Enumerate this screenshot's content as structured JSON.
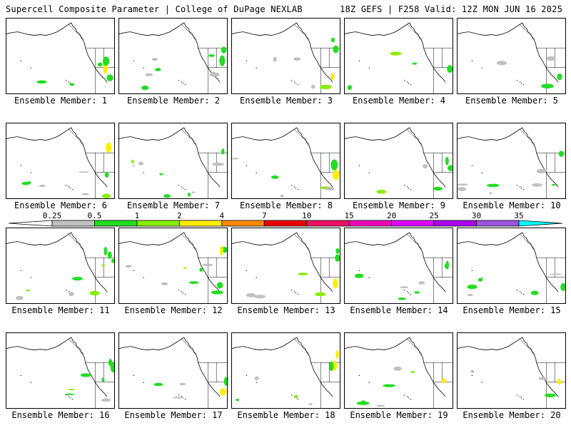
{
  "header": {
    "left": "Supercell Composite Parameter | College of DuPage NEXLAB",
    "right": "18Z GEFS | F258 Valid: 12Z MON JUN 16 2025"
  },
  "panels": [
    {
      "label": "Ensemble Member: 1"
    },
    {
      "label": "Ensemble Member: 2"
    },
    {
      "label": "Ensemble Member: 3"
    },
    {
      "label": "Ensemble Member: 4"
    },
    {
      "label": "Ensemble Member: 5"
    },
    {
      "label": "Ensemble Member: 6"
    },
    {
      "label": "Ensemble Member: 7"
    },
    {
      "label": "Ensemble Member: 8"
    },
    {
      "label": "Ensemble Member: 9"
    },
    {
      "label": "Ensemble Member: 10"
    },
    {
      "label": "Ensemble Member: 11"
    },
    {
      "label": "Ensemble Member: 12"
    },
    {
      "label": "Ensemble Member: 13"
    },
    {
      "label": "Ensemble Member: 14"
    },
    {
      "label": "Ensemble Member: 15"
    },
    {
      "label": "Ensemble Member: 16"
    },
    {
      "label": "Ensemble Member: 17"
    },
    {
      "label": "Ensemble Member: 18"
    },
    {
      "label": "Ensemble Member: 19"
    },
    {
      "label": "Ensemble Member: 20"
    }
  ],
  "colorbar": {
    "ticks": [
      "0.25",
      "0.5",
      "1",
      "2",
      "4",
      "7",
      "10",
      "15",
      "20",
      "25",
      "30",
      "35"
    ],
    "colors": [
      "#c0c0c0",
      "#22dd22",
      "#88ee00",
      "#ffee00",
      "#ff8800",
      "#ee0000",
      "#ee1166",
      "#ee00bb",
      "#dd00ff",
      "#aa00ee",
      "#9955dd"
    ],
    "below_color": "#ffffff",
    "above_color": "#00ffff"
  }
}
